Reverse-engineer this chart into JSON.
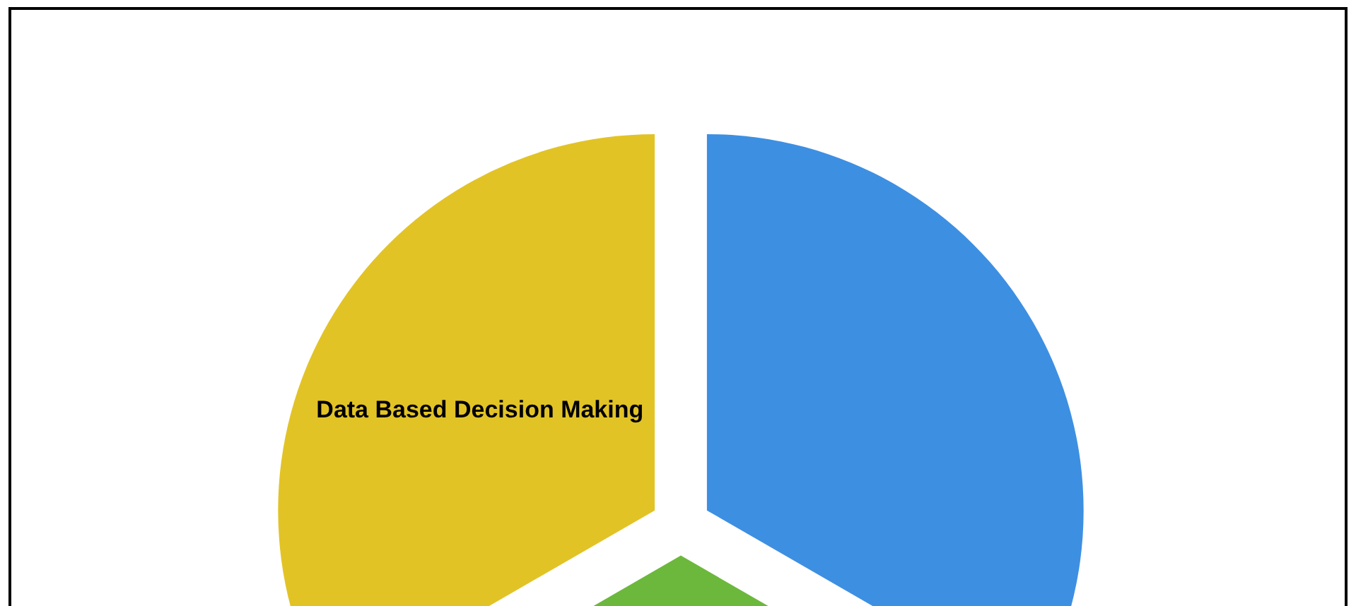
{
  "chart_data": {
    "type": "pie",
    "categories": [
      null,
      null,
      "Data Based Decision Making"
    ],
    "values": [
      33.33,
      33.33,
      33.34
    ],
    "colors": [
      "#3d8fe2",
      "#6cb83c",
      "#e2c326"
    ],
    "legend": false
  }
}
